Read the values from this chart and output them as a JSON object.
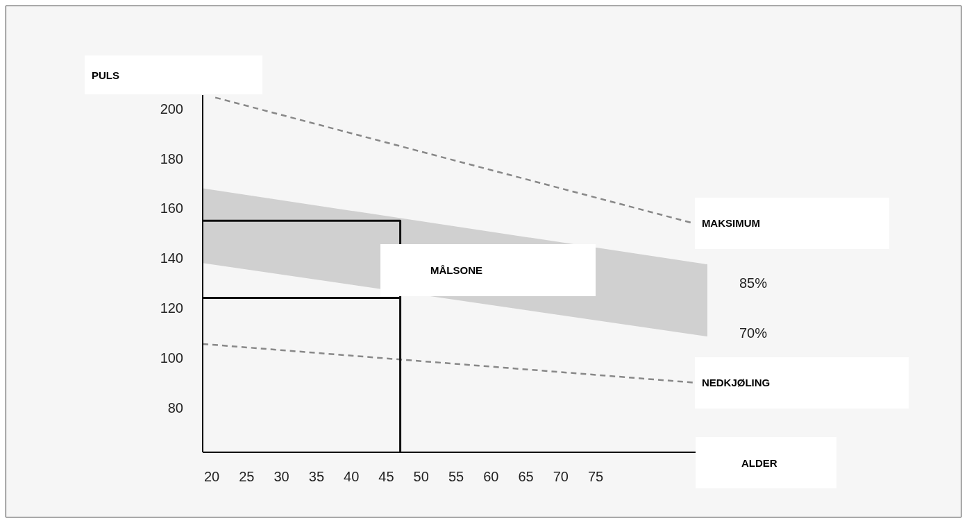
{
  "chart_data": {
    "type": "line",
    "xlabel": "ALDER",
    "ylabel": "PULS",
    "xlim": [
      18.7,
      91
    ],
    "xticks": [
      20,
      25,
      30,
      35,
      40,
      45,
      50,
      55,
      60,
      65,
      70,
      75
    ],
    "ylim": [
      62,
      205.5
    ],
    "yticks": [
      80,
      100,
      120,
      140,
      160,
      180,
      200
    ],
    "grid": false,
    "legend": false,
    "marker": "none",
    "series": [
      {
        "type": "area",
        "color": "#d0d0d0",
        "x": [
          18.7,
          91
        ],
        "values": [
          null,
          null
        ],
        "lower": [
          138,
          108.5
        ],
        "upper": [
          168,
          137.5
        ]
      },
      {
        "name": "MAKSIMUM",
        "color": "#888888",
        "line_style": "dashed",
        "x": [
          20.5,
          89
        ],
        "values": [
          204.5,
          154
        ]
      },
      {
        "name": "NEDKJØLING",
        "color": "#888888",
        "line_style": "dashed",
        "x": [
          18.7,
          89
        ],
        "values": [
          105.5,
          90
        ]
      },
      {
        "color": "#111111",
        "line_style": "solid",
        "x": [
          18.7,
          47,
          47
        ],
        "values": [
          155,
          155,
          62
        ]
      },
      {
        "color": "#111111",
        "line_style": "solid",
        "x": [
          18.7,
          47
        ],
        "values": [
          124,
          124
        ]
      }
    ],
    "annotations": [
      "MÅLSONE",
      "85%",
      "70%"
    ]
  }
}
